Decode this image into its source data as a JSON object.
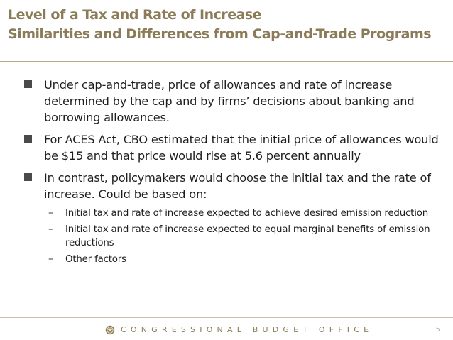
{
  "slide": {
    "title_line1": "Level of a Tax and Rate of Increase",
    "title_line2": "Similarities and Differences from Cap-and-Trade Programs",
    "bullets": [
      {
        "text": "Under cap-and-trade, price of allowances and rate of increase determined by the cap and by firms’ decisions about banking and borrowing allowances.",
        "subbullets": []
      },
      {
        "text": "For ACES Act, CBO estimated that the initial price of allowances would be $15 and that price would rise at 5.6 percent annually",
        "subbullets": []
      },
      {
        "text": "In contrast, policymakers would choose the initial tax and the rate of increase.  Could be based on:",
        "subbullets": [
          "Initial tax and rate of increase expected to achieve desired emission reduction",
          "Initial tax and rate of increase expected to equal marginal benefits of emission reductions",
          "Other factors"
        ]
      }
    ],
    "bullet_marker_icon": "square-bullet-icon",
    "subbullet_marker": "–"
  },
  "footer": {
    "org_name": "CONGRESSIONAL BUDGET OFFICE",
    "page_number": "5",
    "logo_icon": "cbo-seal-icon"
  },
  "colors": {
    "title": "#8b7b58",
    "rule": "#b9ab88",
    "body_text": "#1e1e1e",
    "bullet_marker": "#4a4a4a"
  }
}
